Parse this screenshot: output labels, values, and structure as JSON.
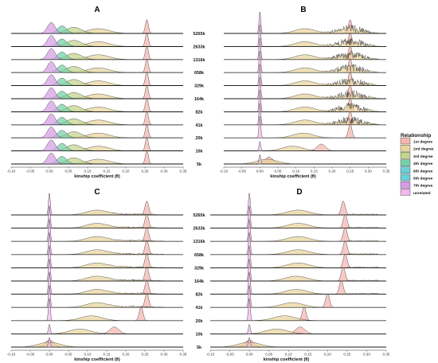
{
  "colors": {
    "1st degree": "#f4b6b0",
    "2nd degree": "#e8d49c",
    "3rd degree": "#c4d48c",
    "4th degree": "#74d0a8",
    "6th degree": "#6ccfd8",
    "5th degree": "#6ccfd8",
    "7th degree": "#d69ce4",
    "unrelated": "#f0b8ec"
  },
  "legend": {
    "title": "Relationship",
    "entries": [
      "1st degree",
      "2nd degree",
      "3rd degree",
      "4th degree",
      "6th degree",
      "5th degree",
      "7th degree",
      "unrelated"
    ]
  },
  "chart_data": [
    {
      "type": "ridgeline",
      "panel": "A",
      "xlabel": "kinship coefficient (θ)",
      "xlim": [
        -0.1,
        0.35
      ],
      "xticks": [
        -0.1,
        -0.05,
        0.0,
        0.05,
        0.1,
        0.15,
        0.2,
        0.25,
        0.3,
        0.35
      ],
      "rows": [
        "5265k",
        "2633k",
        "1316k",
        "658k",
        "329k",
        "164k",
        "82k",
        "41k",
        "20k",
        "10k",
        "5k"
      ],
      "categories": [
        "5265k",
        "2633k",
        "1316k",
        "658k",
        "329k",
        "164k",
        "82k",
        "41k",
        "20k",
        "10k",
        "5k"
      ],
      "series": [
        {
          "name": "1st degree",
          "center": [
            0.255,
            0.255,
            0.255,
            0.255,
            0.255,
            0.255,
            0.255,
            0.255,
            0.255,
            0.255,
            0.255
          ]
        },
        {
          "name": "2nd degree",
          "center": [
            0.128,
            0.128,
            0.128,
            0.128,
            0.128,
            0.128,
            0.128,
            0.128,
            0.128,
            0.128,
            0.128
          ]
        },
        {
          "name": "3rd degree",
          "center": [
            0.064,
            0.064,
            0.064,
            0.064,
            0.064,
            0.064,
            0.064,
            0.064,
            0.064,
            0.064,
            0.064
          ]
        },
        {
          "name": "4th degree",
          "center": [
            0.033,
            0.033,
            0.033,
            0.033,
            0.033,
            0.033,
            0.033,
            0.033,
            0.033,
            0.033,
            0.033
          ]
        },
        {
          "name": "7th degree",
          "center": [
            0.005,
            0.005,
            0.005,
            0.005,
            0.005,
            0.005,
            0.005,
            0.005,
            0.005,
            0.005,
            0.005
          ]
        }
      ]
    },
    {
      "type": "ridgeline",
      "panel": "B",
      "xlabel": "kinship coefficient (θ)",
      "xlim": [
        -0.1,
        0.35
      ],
      "xticks": [
        -0.1,
        -0.05,
        0.0,
        0.05,
        0.1,
        0.15,
        0.2,
        0.25,
        0.3,
        0.35
      ],
      "rows": [
        "5265k",
        "2633k",
        "1316k",
        "658k",
        "329k",
        "164k",
        "82k",
        "41k",
        "20k",
        "10k",
        "5k"
      ],
      "categories": [
        "5265k",
        "2633k",
        "1316k",
        "658k",
        "329k",
        "164k",
        "82k",
        "41k",
        "20k",
        "10k",
        "5k"
      ],
      "series": [
        {
          "name": "1st degree",
          "center": [
            0.25,
            0.25,
            0.25,
            0.25,
            0.25,
            0.25,
            0.25,
            0.25,
            0.25,
            0.17,
            0.025
          ]
        },
        {
          "name": "2nd degree",
          "center": [
            0.125,
            0.125,
            0.125,
            0.125,
            0.125,
            0.125,
            0.125,
            0.125,
            0.12,
            0.09,
            0.02
          ]
        },
        {
          "name": "unrelated",
          "center": [
            0.0,
            0.0,
            0.0,
            0.0,
            0.0,
            0.0,
            0.0,
            0.0,
            0.0,
            0.0,
            0.0
          ]
        }
      ]
    },
    {
      "type": "ridgeline",
      "panel": "C",
      "xlabel": "kinship coefficient (θ)",
      "xlim": [
        -0.1,
        0.35
      ],
      "xticks": [
        -0.1,
        -0.05,
        0.0,
        0.05,
        0.1,
        0.15,
        0.2,
        0.25,
        0.3,
        0.35
      ],
      "rows": [
        "5265k",
        "2633k",
        "1316k",
        "658k",
        "329k",
        "164k",
        "82k",
        "41k",
        "20k",
        "10k",
        "5k"
      ],
      "categories": [
        "5265k",
        "2633k",
        "1316k",
        "658k",
        "329k",
        "164k",
        "82k",
        "41k",
        "20k",
        "10k",
        "5k"
      ],
      "series": [
        {
          "name": "1st degree",
          "center": [
            0.255,
            0.255,
            0.255,
            0.255,
            0.255,
            0.255,
            0.255,
            0.255,
            0.24,
            0.17,
            0.0
          ]
        },
        {
          "name": "2nd degree",
          "center": [
            0.125,
            0.125,
            0.125,
            0.125,
            0.125,
            0.125,
            0.125,
            0.125,
            0.11,
            0.08,
            0.0
          ]
        },
        {
          "name": "unrelated",
          "center": [
            0.0,
            0.0,
            0.0,
            0.0,
            0.0,
            0.0,
            0.0,
            0.0,
            0.0,
            0.0,
            0.0
          ]
        }
      ]
    },
    {
      "type": "ridgeline",
      "panel": "D",
      "xlabel": "kinship coefficient (θ)",
      "xlim": [
        -0.1,
        0.35
      ],
      "xticks": [
        -0.1,
        -0.05,
        0.0,
        0.05,
        0.1,
        0.15,
        0.2,
        0.25,
        0.3,
        0.35
      ],
      "rows": [
        "5265k",
        "2633k",
        "1316k",
        "658k",
        "329k",
        "164k",
        "82k",
        "41k",
        "20k",
        "10k",
        "5k"
      ],
      "categories": [
        "5265k",
        "2633k",
        "1316k",
        "658k",
        "329k",
        "164k",
        "82k",
        "41k",
        "20k",
        "10k",
        "5k"
      ],
      "series": [
        {
          "name": "1st degree",
          "center": [
            0.24,
            0.245,
            0.245,
            0.245,
            0.245,
            0.24,
            0.235,
            0.2,
            0.14,
            0.13,
            0.0
          ]
        },
        {
          "name": "2nd degree",
          "center": [
            0.125,
            0.125,
            0.125,
            0.125,
            0.125,
            0.12,
            0.12,
            0.11,
            0.09,
            0.07,
            0.0
          ]
        },
        {
          "name": "unrelated",
          "center": [
            0.0,
            0.0,
            0.0,
            0.0,
            0.0,
            0.0,
            0.0,
            0.0,
            0.0,
            0.0,
            0.0
          ]
        }
      ]
    }
  ]
}
